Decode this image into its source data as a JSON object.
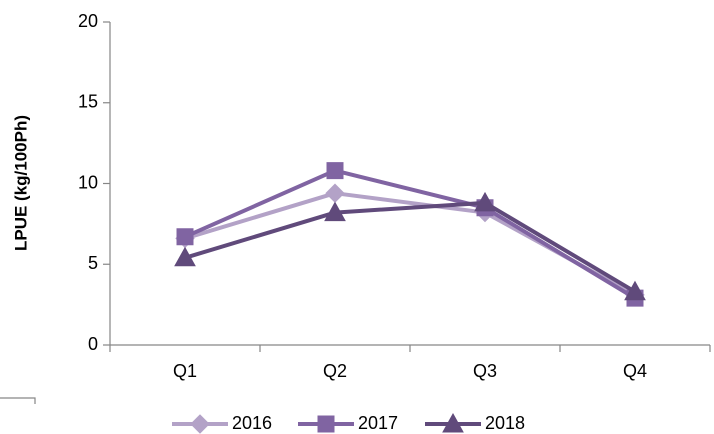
{
  "chart_data": {
    "type": "line",
    "y_label": "LPUE (kg/100Ph)",
    "categories": [
      "Q1",
      "Q2",
      "Q3",
      "Q4"
    ],
    "series": [
      {
        "name": "2016",
        "color": "#b3a2c7",
        "marker": "diamond",
        "values": [
          6.6,
          9.4,
          8.2,
          3.1
        ]
      },
      {
        "name": "2017",
        "color": "#8064a2",
        "marker": "square",
        "values": [
          6.7,
          10.8,
          8.5,
          2.9
        ]
      },
      {
        "name": "2018",
        "color": "#604a7b",
        "marker": "triangle",
        "values": [
          5.4,
          8.2,
          8.8,
          3.3
        ]
      }
    ],
    "ylim": [
      0,
      20
    ],
    "yticks": [
      0,
      5,
      10,
      15,
      20
    ],
    "grid": false,
    "legend": "bottom"
  }
}
